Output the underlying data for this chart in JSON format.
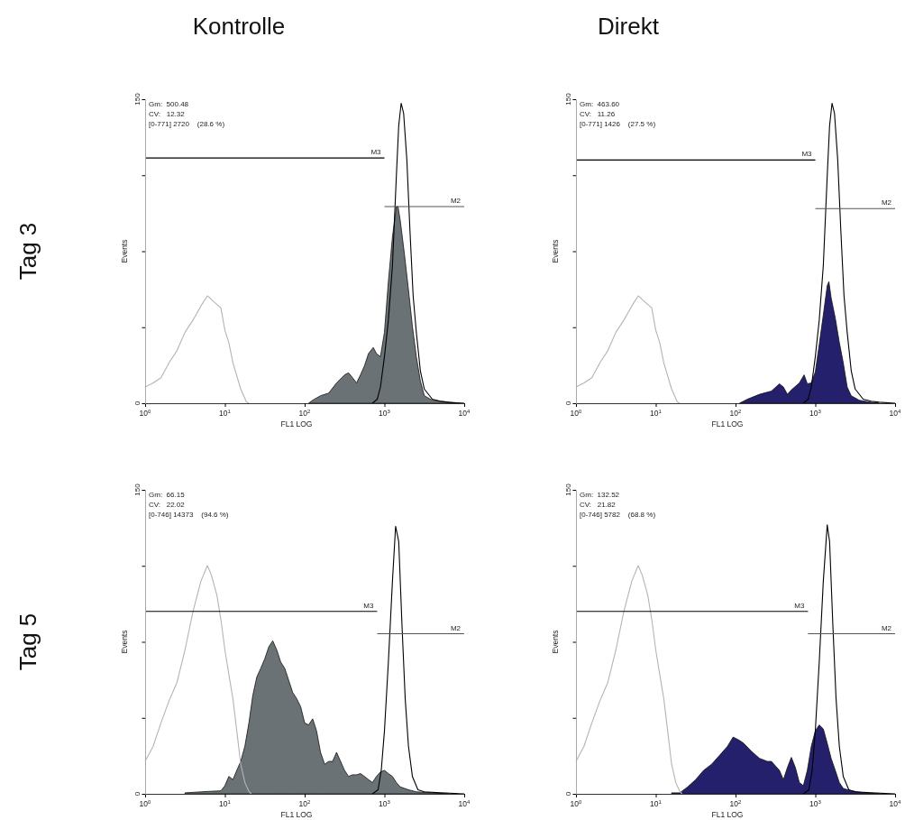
{
  "chart_data": [
    {
      "type": "line",
      "title": "Kontrolle",
      "subtitle": "Tag 3",
      "xlabel": "FL1 LOG",
      "ylabel": "Events",
      "log": "x",
      "legend": false,
      "grid": false,
      "xlim": [
        1,
        10000
      ],
      "ylim": [
        0,
        150
      ],
      "xticks": [
        {
          "value": 1,
          "label": "10$^{0}$"
        },
        {
          "value": 10,
          "label": "10$^{1}$"
        },
        {
          "value": 100,
          "label": "10$^{2}$"
        },
        {
          "value": 1000,
          "label": "10$^{3}$"
        },
        {
          "value": 10000,
          "label": "10$^{4}$"
        }
      ],
      "yticks": [
        {
          "value": 0,
          "label": "0"
        },
        {
          "value": 37.5,
          "label": null
        },
        {
          "value": 75,
          "label": null
        },
        {
          "value": 112.5,
          "label": null
        },
        {
          "value": 150,
          "label": "150"
        }
      ],
      "annotations": [
        "Gm:  500.48",
        "CV:   12.32",
        "[0-771] 2720    (28.6 %)"
      ],
      "series": [
        {
          "type": "line",
          "color": "#b4b4b4",
          "x": [
            1,
            1.26,
            1.58,
            2,
            2.51,
            3.16,
            3.98,
            5.01,
            6.03,
            7.08,
            8.91,
            10,
            11.2,
            12.6,
            15.8,
            18.6,
            20
          ],
          "values": [
            8,
            10,
            12.6,
            20,
            26,
            35,
            41,
            48,
            53,
            50.5,
            47,
            36,
            30,
            20,
            7,
            0.7,
            0
          ]
        },
        {
          "type": "area",
          "color": "#6b7275",
          "x": [
            112,
            126,
            158,
            200,
            251,
            316,
            355,
            398,
            447,
            501,
            562,
            631,
            724,
            794,
            891,
            1000,
            1120,
            1260,
            1410,
            1480,
            1580,
            1780,
            2000,
            2240,
            2510,
            2820,
            3160,
            3980,
            6310,
            7940
          ],
          "values": [
            0,
            1.5,
            3.7,
            5,
            10,
            14,
            15,
            12.6,
            10,
            14,
            18.5,
            24.5,
            27.5,
            24.5,
            23,
            35,
            60,
            82,
            97,
            97,
            90,
            73.5,
            56,
            38,
            23,
            11,
            3.7,
            1.5,
            0.5,
            0
          ]
        },
        {
          "type": "line",
          "color": "#000000",
          "x": [
            708,
            813,
            891,
            1000,
            1120,
            1260,
            1410,
            1510,
            1620,
            1740,
            1910,
            2090,
            2290,
            2510,
            2820,
            3160,
            3980,
            5010,
            6310,
            10000
          ],
          "values": [
            0,
            2,
            8,
            23,
            41,
            68,
            112,
            137,
            148,
            143,
            120,
            85,
            53,
            35,
            16,
            7,
            2,
            1,
            0.5,
            0
          ]
        },
        {
          "type": "line",
          "name": "M3",
          "color": "#000000",
          "x": [
            1,
            1000
          ],
          "values": [
            121,
            121
          ]
        },
        {
          "type": "line",
          "name": "M2",
          "color": "#555555",
          "x": [
            1000,
            10000
          ],
          "values": [
            97,
            97
          ]
        }
      ]
    },
    {
      "type": "line",
      "title": "Direkt",
      "xlabel": "FL1 LOG",
      "ylabel": "Events",
      "log": "x",
      "legend": false,
      "grid": false,
      "xlim": [
        1,
        10000
      ],
      "ylim": [
        0,
        150
      ],
      "xticks": [
        {
          "value": 1,
          "label": "10$^{0}$"
        },
        {
          "value": 10,
          "label": "10$^{1}$"
        },
        {
          "value": 100,
          "label": "10$^{2}$"
        },
        {
          "value": 1000,
          "label": "10$^{3}$"
        },
        {
          "value": 10000,
          "label": "10$^{4}$"
        }
      ],
      "yticks": [
        {
          "value": 0,
          "label": "0"
        },
        {
          "value": 37.5,
          "label": null
        },
        {
          "value": 75,
          "label": null
        },
        {
          "value": 112.5,
          "label": null
        },
        {
          "value": 150,
          "label": "150"
        }
      ],
      "annotations": [
        "Gm:  463.60",
        "CV:   11.26",
        "[0-771] 1426    (27.5 %)"
      ],
      "series": [
        {
          "type": "line",
          "color": "#b4b4b4",
          "x": [
            1,
            1.26,
            1.58,
            2,
            2.51,
            3.16,
            3.98,
            5.01,
            6.03,
            7.08,
            8.91,
            10,
            11.2,
            12.6,
            15.8,
            18.6,
            20
          ],
          "values": [
            8,
            10,
            12.6,
            20,
            26,
            35,
            41,
            48,
            53,
            50.5,
            47,
            36,
            30,
            20,
            7,
            0.7,
            0
          ]
        },
        {
          "type": "area",
          "color": "#25206b",
          "x": [
            112,
            141,
            200,
            282,
            355,
            398,
            447,
            501,
            631,
            724,
            794,
            891,
            1000,
            1120,
            1260,
            1410,
            1480,
            1580,
            1780,
            2000,
            2240,
            2510,
            2820,
            3550,
            5010,
            6310
          ],
          "values": [
            0,
            2,
            4.4,
            6,
            9.6,
            8,
            4.4,
            6.6,
            10,
            14,
            9.6,
            10,
            15.5,
            29,
            43.6,
            58,
            60,
            52,
            42,
            30,
            20,
            8,
            3.7,
            1.5,
            0.5,
            0
          ]
        },
        {
          "type": "line",
          "color": "#000000",
          "x": [
            708,
            813,
            891,
            1000,
            1120,
            1260,
            1410,
            1510,
            1620,
            1740,
            1910,
            2090,
            2290,
            2510,
            2820,
            3160,
            3980,
            5010,
            6310,
            10000
          ],
          "values": [
            0,
            2,
            8,
            23,
            41,
            68,
            112,
            137,
            148,
            143,
            120,
            85,
            53,
            35,
            16,
            7,
            2,
            1,
            0.5,
            0
          ]
        },
        {
          "type": "line",
          "name": "M3",
          "color": "#000000",
          "x": [
            1,
            1000
          ],
          "values": [
            120,
            120
          ]
        },
        {
          "type": "line",
          "name": "M2",
          "color": "#555555",
          "x": [
            1000,
            10000
          ],
          "values": [
            96,
            96
          ]
        }
      ]
    },
    {
      "type": "line",
      "subtitle": "Tag 5",
      "xlabel": "FL1 LOG",
      "ylabel": "Events",
      "log": "x",
      "legend": false,
      "grid": false,
      "xlim": [
        1,
        10000
      ],
      "ylim": [
        0,
        150
      ],
      "xticks": [
        {
          "value": 1,
          "label": "10$^{0}$"
        },
        {
          "value": 10,
          "label": "10$^{1}$"
        },
        {
          "value": 100,
          "label": "10$^{2}$"
        },
        {
          "value": 1000,
          "label": "10$^{3}$"
        },
        {
          "value": 10000,
          "label": "10$^{4}$"
        }
      ],
      "yticks": [
        {
          "value": 0,
          "label": "0"
        },
        {
          "value": 37.5,
          "label": null
        },
        {
          "value": 75,
          "label": null
        },
        {
          "value": 112.5,
          "label": null
        },
        {
          "value": 150,
          "label": "150"
        }
      ],
      "annotations": [
        "Gm:  66.15",
        "CV:   22.02",
        "[0-746] 14373    (94.6 %)"
      ],
      "series": [
        {
          "type": "line",
          "color": "#b4b4b4",
          "x": [
            1,
            1.26,
            1.58,
            2,
            2.51,
            3.16,
            3.98,
            5.01,
            6.03,
            6.76,
            7.94,
            8.91,
            10,
            11.2,
            12.6,
            14.1,
            15.8,
            17.8,
            20,
            21.4
          ],
          "values": [
            16,
            23.5,
            35,
            46,
            55,
            71,
            90,
            105,
            112.6,
            108,
            98,
            86,
            71,
            59,
            47,
            31,
            14.6,
            5.6,
            1.2,
            0
          ]
        },
        {
          "type": "area",
          "color": "#6b7275",
          "x": [
            3.16,
            6.31,
            8.91,
            10,
            11.2,
            12.6,
            14.1,
            15.8,
            17.8,
            20,
            22.4,
            25.1,
            28.2,
            31.6,
            35.5,
            39.8,
            44.7,
            50.1,
            56.2,
            63.1,
            70.8,
            79.4,
            89.1,
            100,
            112,
            126,
            141,
            158,
            178,
            200,
            224,
            251,
            282,
            316,
            355,
            398,
            447,
            501,
            562,
            631,
            708,
            794,
            891,
            1000,
            1120,
            1260,
            1410,
            1580,
            2000,
            2510,
            3980,
            6310
          ],
          "values": [
            0.5,
            1.2,
            1.5,
            4,
            8.6,
            7,
            11.6,
            16,
            23.5,
            35,
            48.7,
            57.6,
            62,
            66.6,
            72.5,
            75.5,
            71,
            65,
            62,
            56,
            50,
            47,
            43,
            35,
            34,
            37,
            31,
            20.5,
            14.6,
            16,
            16,
            20.5,
            16,
            11.6,
            8.6,
            9.4,
            9.4,
            10,
            8.6,
            7,
            5.6,
            8.6,
            10.8,
            11.6,
            10,
            8.6,
            5.6,
            3.4,
            2,
            1,
            0.5,
            0
          ]
        },
        {
          "type": "line",
          "color": "#000000",
          "x": [
            708,
            832,
            912,
            1000,
            1120,
            1260,
            1380,
            1510,
            1660,
            1820,
            2000,
            2240,
            2630,
            3160,
            5010,
            10000
          ],
          "values": [
            0,
            2,
            11.6,
            31,
            65,
            105,
            132,
            124.5,
            83,
            47,
            23.5,
            8.6,
            2,
            1,
            0.5,
            0
          ]
        },
        {
          "type": "line",
          "name": "M3",
          "color": "#000000",
          "x": [
            1,
            810
          ],
          "values": [
            90,
            90
          ]
        },
        {
          "type": "line",
          "name": "M2",
          "color": "#555555",
          "x": [
            810,
            10000
          ],
          "values": [
            79,
            79
          ]
        }
      ]
    },
    {
      "type": "line",
      "xlabel": "FL1 LOG",
      "ylabel": "Events",
      "log": "x",
      "legend": false,
      "grid": false,
      "xlim": [
        1,
        10000
      ],
      "ylim": [
        0,
        150
      ],
      "xticks": [
        {
          "value": 1,
          "label": "10$^{0}$"
        },
        {
          "value": 10,
          "label": "10$^{1}$"
        },
        {
          "value": 100,
          "label": "10$^{2}$"
        },
        {
          "value": 1000,
          "label": "10$^{3}$"
        },
        {
          "value": 10000,
          "label": "10$^{4}$"
        }
      ],
      "yticks": [
        {
          "value": 0,
          "label": "0"
        },
        {
          "value": 37.5,
          "label": null
        },
        {
          "value": 75,
          "label": null
        },
        {
          "value": 112.5,
          "label": null
        },
        {
          "value": 150,
          "label": "150"
        }
      ],
      "annotations": [
        "Gm:  132.52",
        "CV:   21.82",
        "[0-746] 5782    (68.8 %)"
      ],
      "series": [
        {
          "type": "line",
          "color": "#b4b4b4",
          "x": [
            1,
            1.26,
            1.58,
            2,
            2.51,
            3.16,
            3.98,
            5.01,
            6.03,
            6.76,
            7.94,
            8.91,
            10,
            11.2,
            12.6,
            14.1,
            15.8,
            17.8,
            20,
            21.4
          ],
          "values": [
            16,
            23.5,
            35,
            46,
            55,
            71,
            90,
            105,
            112.6,
            108,
            98,
            86,
            71,
            59,
            47,
            31,
            14.6,
            5.6,
            1.2,
            0
          ]
        },
        {
          "type": "area",
          "color": "#25206b",
          "x": [
            15.8,
            20,
            25.1,
            31.6,
            39.8,
            50.1,
            63.1,
            79.4,
            93.3,
            112,
            126,
            158,
            200,
            251,
            282,
            355,
            398,
            447,
            501,
            562,
            631,
            708,
            794,
            891,
            1000,
            1120,
            1260,
            1410,
            1580,
            1780,
            2000,
            2240,
            2820,
            3980,
            6310
          ],
          "values": [
            0.5,
            0.5,
            3.4,
            7,
            11.6,
            14.6,
            19,
            23.5,
            28,
            26.4,
            25,
            21,
            17.5,
            16,
            16,
            11.6,
            7,
            13,
            18,
            13,
            5.6,
            4,
            11.6,
            23.5,
            31,
            34,
            32,
            25,
            17.5,
            11.6,
            5.6,
            2.7,
            1.5,
            0.5,
            0
          ]
        },
        {
          "type": "line",
          "color": "#000000",
          "x": [
            708,
            832,
            912,
            1000,
            1120,
            1260,
            1410,
            1510,
            1660,
            1820,
            2000,
            2240,
            2630,
            3160,
            5010,
            10000
          ],
          "values": [
            0,
            2,
            11.6,
            31,
            65,
            105,
            132.7,
            124.5,
            83,
            47,
            23.5,
            8.6,
            2,
            1,
            0.5,
            0
          ]
        },
        {
          "type": "line",
          "name": "M3",
          "color": "#000000",
          "x": [
            1,
            810
          ],
          "values": [
            90,
            90
          ]
        },
        {
          "type": "line",
          "name": "M2",
          "color": "#555555",
          "x": [
            810,
            10000
          ],
          "values": [
            79,
            79
          ]
        }
      ]
    }
  ]
}
